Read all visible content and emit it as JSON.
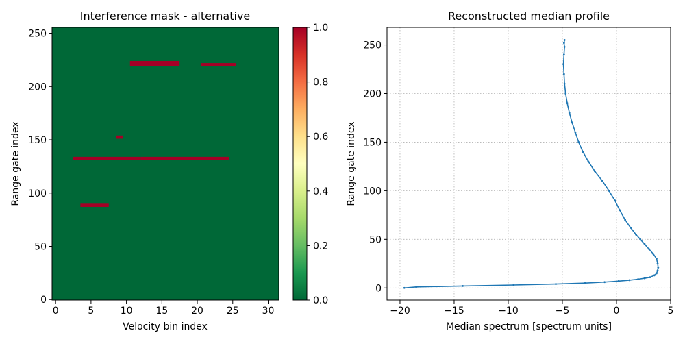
{
  "chart_data": [
    {
      "type": "heatmap",
      "title": "Interference mask - alternative",
      "xlabel": "Velocity bin index",
      "ylabel": "Range gate index",
      "xlim": [
        -0.5,
        31.5
      ],
      "ylim": [
        -0.5,
        255.5
      ],
      "xticks": [
        0,
        5,
        10,
        15,
        20,
        25,
        30
      ],
      "yticks": [
        0,
        50,
        100,
        150,
        200,
        250
      ],
      "colormap": "RdYlGn_r",
      "colors": {
        "low": "#006837",
        "high": "#a50026"
      },
      "background_value": 0,
      "colorbar": {
        "min": 0.0,
        "max": 1.0,
        "ticks": [
          "0.0",
          "0.2",
          "0.4",
          "0.6",
          "0.8",
          "1.0"
        ]
      },
      "masked_regions": [
        {
          "x": [
            10.5,
            17.5
          ],
          "y": [
            219,
            224
          ],
          "value": 1
        },
        {
          "x": [
            20.5,
            25.5
          ],
          "y": [
            219,
            222
          ],
          "value": 1
        },
        {
          "x": [
            8.5,
            9.5
          ],
          "y": [
            151,
            154
          ],
          "value": 1
        },
        {
          "x": [
            2.5,
            12.0
          ],
          "y": [
            131,
            134
          ],
          "value": 1
        },
        {
          "x": [
            12.0,
            24.5
          ],
          "y": [
            131,
            134
          ],
          "value": 1
        },
        {
          "x": [
            3.5,
            7.5
          ],
          "y": [
            87,
            90
          ],
          "value": 1
        }
      ]
    },
    {
      "type": "line",
      "title": "Reconstructed median profile",
      "xlabel": "Median spectrum [spectrum units]",
      "ylabel": "Range gate index",
      "xlim": [
        -21.2,
        5.0
      ],
      "ylim": [
        -12.5,
        268
      ],
      "xticks": [
        -20,
        -15,
        -10,
        -5,
        0,
        5
      ],
      "yticks": [
        0,
        50,
        100,
        150,
        200,
        250
      ],
      "grid": true,
      "color": "#1f77b4",
      "marker": "point",
      "x": [
        -19.6,
        -18.5,
        -14.2,
        -9.5,
        -5.6,
        -2.9,
        -1.1,
        0.2,
        1.2,
        2.0,
        2.6,
        3.1,
        3.5,
        3.7,
        3.8,
        3.85,
        3.8,
        3.7,
        3.4,
        3.0,
        2.6,
        2.2,
        1.8,
        1.3,
        0.8,
        0.3,
        -0.15,
        -0.7,
        -1.3,
        -2.0,
        -2.6,
        -3.1,
        -3.5,
        -3.8,
        -4.1,
        -4.35,
        -4.55,
        -4.7,
        -4.8,
        -4.85,
        -4.9,
        -4.85,
        -4.8,
        -4.85,
        -4.8
      ],
      "y": [
        0,
        1,
        2,
        3,
        4,
        5,
        6,
        7,
        8,
        9,
        10,
        11,
        13,
        15,
        18,
        21,
        25,
        30,
        35,
        40,
        45,
        50,
        55,
        62,
        70,
        80,
        90,
        100,
        110,
        120,
        130,
        140,
        150,
        160,
        170,
        180,
        190,
        200,
        210,
        220,
        230,
        240,
        248,
        252,
        255
      ]
    }
  ]
}
